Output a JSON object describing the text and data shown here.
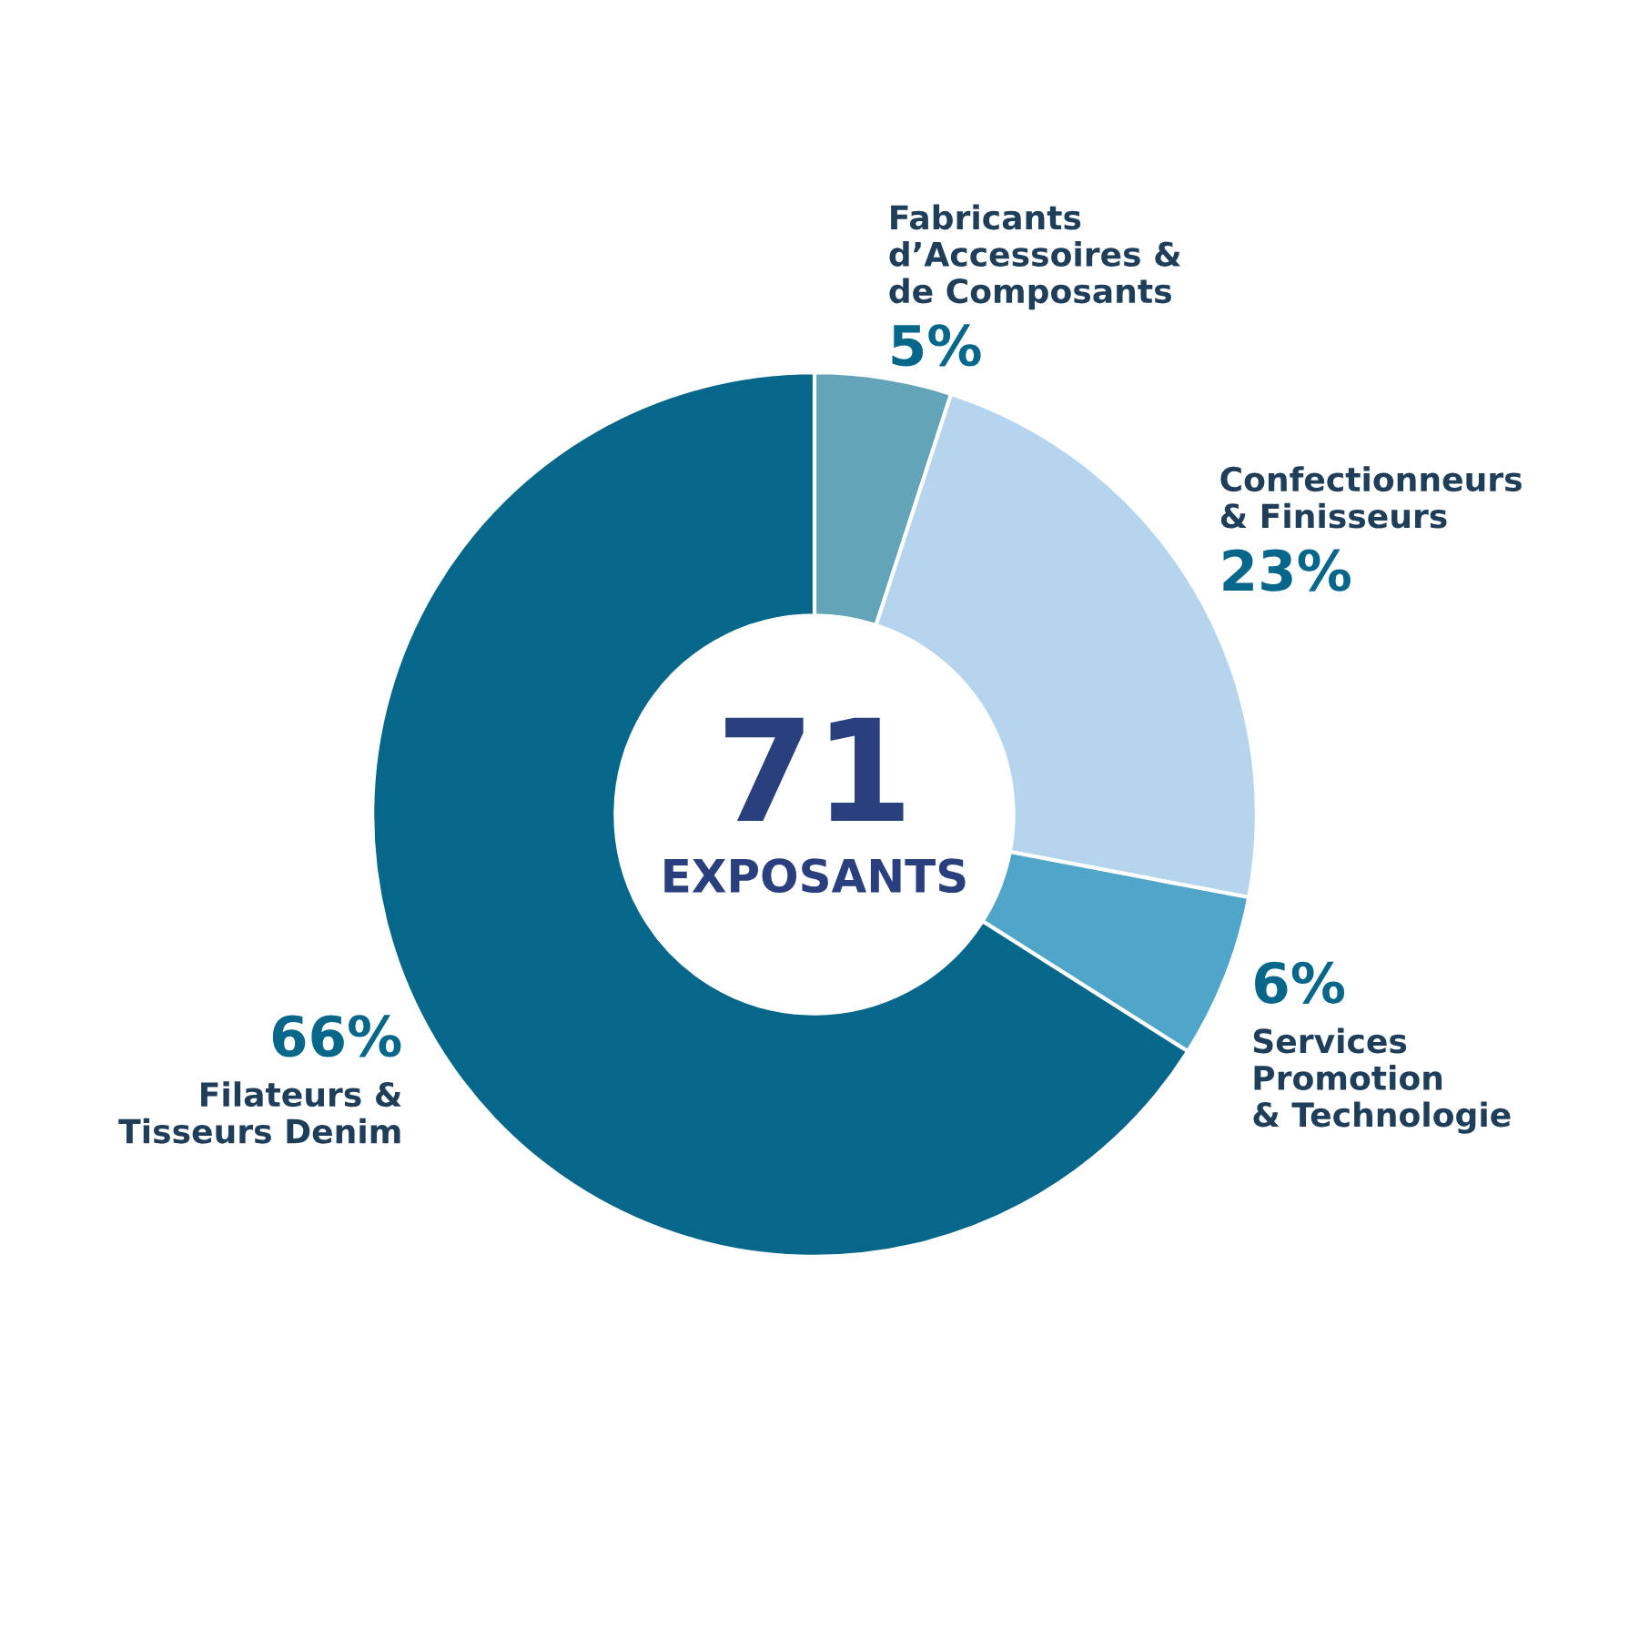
{
  "chart_data": {
    "type": "donut",
    "categories": [
      "Fabricants\nd’Accessoires &\nde Composants",
      "Confectionneurs\n& Finisseurs",
      "Services\nPromotion\n& Technologie",
      "Filateurs &\nTisseurs Denim"
    ],
    "values": [
      5,
      23,
      6,
      66
    ],
    "value_labels": [
      "5%",
      "23%",
      "6%",
      "66%"
    ],
    "colors": [
      "#63a4b9",
      "#b5d5ee",
      "#4fa6c9",
      "#07678a"
    ],
    "annotations": [
      "71",
      "EXPOSANTS"
    ]
  }
}
